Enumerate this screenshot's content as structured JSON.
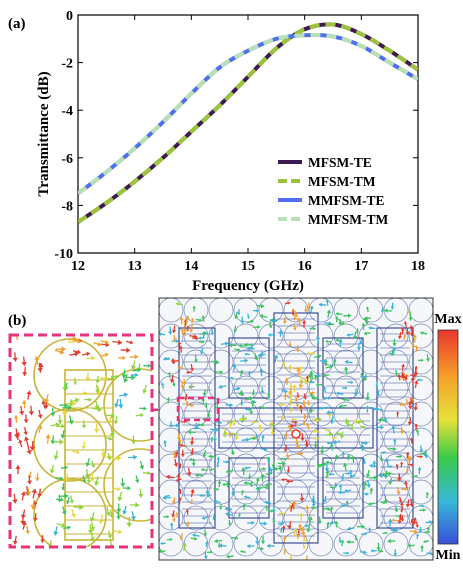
{
  "panel_a": {
    "label": "(a)"
  },
  "panel_b": {
    "label": "(b)"
  },
  "colorbar": {
    "max_label": "Max",
    "min_label": "Min"
  },
  "chart_data": {
    "type": "line",
    "xlabel": "Frequency (GHz)",
    "ylabel": "Transmittance (dB)",
    "xlim": [
      12,
      18
    ],
    "ylim": [
      -10,
      0
    ],
    "xticks": [
      12,
      13,
      14,
      15,
      16,
      17,
      18
    ],
    "yticks": [
      0,
      -2,
      -4,
      -6,
      -8,
      -10
    ],
    "grid": false,
    "legend_position": "bottom-right",
    "series": [
      {
        "name": "MFSM-TE",
        "color": "#3d1a4f",
        "style": "solid",
        "x": [
          12,
          12.5,
          13,
          13.5,
          14,
          14.5,
          15,
          15.5,
          16,
          16.5,
          17,
          17.5,
          18
        ],
        "y": [
          -8.7,
          -7.9,
          -7.0,
          -6.0,
          -4.9,
          -3.8,
          -2.6,
          -1.4,
          -0.6,
          -0.4,
          -0.8,
          -1.5,
          -2.3
        ]
      },
      {
        "name": "MFSM-TM",
        "color": "#9bc43a",
        "style": "dashed",
        "x": [
          12,
          12.5,
          13,
          13.5,
          14,
          14.5,
          15,
          15.5,
          16,
          16.5,
          17,
          17.5,
          18
        ],
        "y": [
          -8.7,
          -7.9,
          -7.0,
          -6.0,
          -4.9,
          -3.8,
          -2.6,
          -1.4,
          -0.6,
          -0.4,
          -0.8,
          -1.5,
          -2.3
        ]
      },
      {
        "name": "MMFSM-TE",
        "color": "#4f6ef0",
        "style": "solid",
        "x": [
          12,
          12.5,
          13,
          13.5,
          14,
          14.5,
          15,
          15.5,
          16,
          16.5,
          17,
          17.5,
          18
        ],
        "y": [
          -7.5,
          -6.6,
          -5.6,
          -4.5,
          -3.3,
          -2.2,
          -1.5,
          -1.0,
          -0.85,
          -0.9,
          -1.3,
          -2.0,
          -2.7
        ]
      },
      {
        "name": "MMFSM-TM",
        "color": "#b9e0b4",
        "style": "dashed",
        "x": [
          12,
          12.5,
          13,
          13.5,
          14,
          14.5,
          15,
          15.5,
          16,
          16.5,
          17,
          17.5,
          18
        ],
        "y": [
          -7.5,
          -6.6,
          -5.6,
          -4.5,
          -3.3,
          -2.2,
          -1.5,
          -1.0,
          -0.85,
          -0.9,
          -1.3,
          -2.0,
          -2.7
        ]
      }
    ]
  }
}
